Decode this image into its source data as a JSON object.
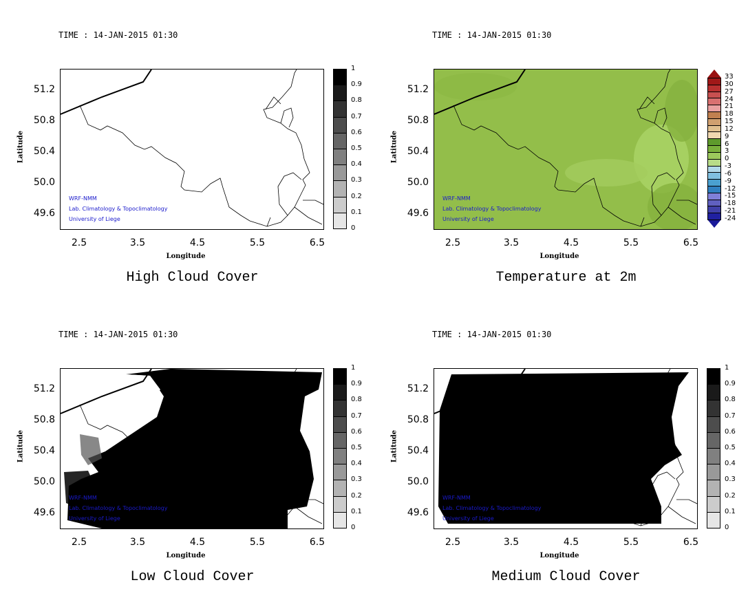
{
  "panels": [
    {
      "id": "high-cloud",
      "time": "TIME : 14-JAN-2015 01:30",
      "title": "High Cloud Cover",
      "xlabel": "Longitude",
      "ylabel": "Latitude",
      "xticks": [
        "2.5",
        "3.5",
        "4.5",
        "5.5",
        "6.5"
      ],
      "yticks": [
        "51.2",
        "50.8",
        "50.4",
        "50.0",
        "49.6"
      ],
      "credits": [
        "WRF-NMM",
        "Lab. Climatology & Topoclimatology",
        "University of Liege"
      ],
      "colorbar_labels": [
        "1",
        "0.9",
        "0.8",
        "0.7",
        "0.6",
        "0.5",
        "0.4",
        "0.3",
        "0.2",
        "0.1",
        "0"
      ],
      "fill": "none"
    },
    {
      "id": "temperature",
      "time": "TIME : 14-JAN-2015 01:30",
      "title": "Temperature at 2m",
      "xlabel": "Longitude",
      "ylabel": "Latitude",
      "xticks": [
        "2.5",
        "3.5",
        "4.5",
        "5.5",
        "6.5"
      ],
      "yticks": [
        "51.2",
        "50.8",
        "50.4",
        "50.0",
        "49.6"
      ],
      "credits": [
        "WRF-NMM",
        "Lab. Climatology & Topoclimatology",
        "University of Liege"
      ],
      "colorbar_labels": [
        "33",
        "30",
        "27",
        "24",
        "21",
        "18",
        "15",
        "12",
        "9",
        "6",
        "3",
        "0",
        "-3",
        "-6",
        "-9",
        "-12",
        "-15",
        "-18",
        "-21",
        "-24"
      ],
      "fill": "temperature"
    },
    {
      "id": "low-cloud",
      "time": "TIME : 14-JAN-2015 01:30",
      "title": "Low Cloud Cover",
      "xlabel": "Longitude",
      "ylabel": "Latitude",
      "xticks": [
        "2.5",
        "3.5",
        "4.5",
        "5.5",
        "6.5"
      ],
      "yticks": [
        "51.2",
        "50.8",
        "50.4",
        "50.0",
        "49.6"
      ],
      "credits": [
        "WRF-NMM",
        "Lab. Climatology & Topoclimatology",
        "University of Liege"
      ],
      "colorbar_labels": [
        "1",
        "0.9",
        "0.8",
        "0.7",
        "0.6",
        "0.5",
        "0.4",
        "0.3",
        "0.2",
        "0.1",
        "0"
      ],
      "fill": "low"
    },
    {
      "id": "medium-cloud",
      "time": "TIME : 14-JAN-2015 01:30",
      "title": "Medium Cloud Cover",
      "xlabel": "Longitude",
      "ylabel": "Latitude",
      "xticks": [
        "2.5",
        "3.5",
        "4.5",
        "5.5",
        "6.5"
      ],
      "yticks": [
        "51.2",
        "50.8",
        "50.4",
        "50.0",
        "49.6"
      ],
      "credits": [
        "WRF-NMM",
        "Lab. Climatology & Topoclimatology",
        "University of Liege"
      ],
      "colorbar_labels": [
        "1",
        "0.9",
        "0.8",
        "0.7",
        "0.6",
        "0.5",
        "0.4",
        "0.3",
        "0.2",
        "0.1",
        "0"
      ],
      "fill": "medium"
    }
  ],
  "colors": {
    "credits": "#1a1acc",
    "temperature_field": "#99c24f",
    "cloud": "#000000"
  }
}
